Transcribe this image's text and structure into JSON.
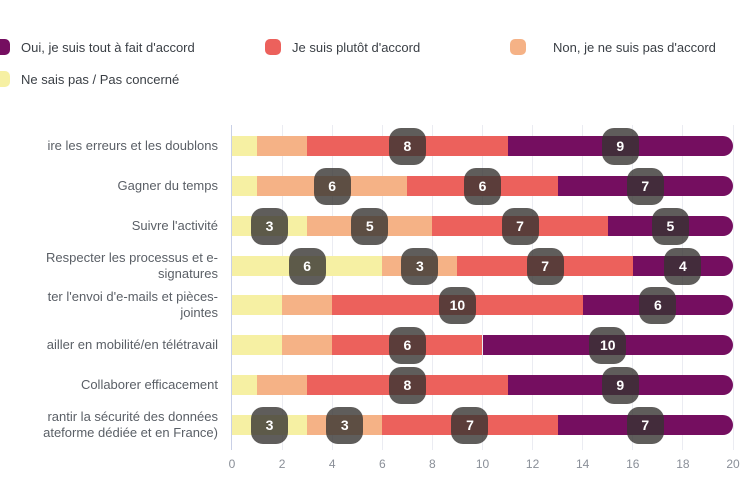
{
  "chart_data": {
    "type": "bar",
    "orientation": "horizontal",
    "stacked": true,
    "title": "",
    "legend_position": "top",
    "grid": "vertical",
    "xlim": [
      0,
      20
    ],
    "xticks": [
      0,
      2,
      4,
      6,
      8,
      10,
      12,
      14,
      16,
      18,
      20
    ],
    "categories": [
      [
        "ire les erreurs et les doublons"
      ],
      [
        "Gagner du temps"
      ],
      [
        "Suivre l'activité"
      ],
      [
        "Respecter les processus et e-",
        "signatures"
      ],
      [
        "ter l'envoi d'e-mails et pièces-",
        "jointes"
      ],
      [
        "ailler en mobilité/en télétravail"
      ],
      [
        "Collaborer efficacement"
      ],
      [
        "rantir la sécurité des données",
        "ateforme dédiée et en France)"
      ]
    ],
    "series": [
      {
        "name": "Oui, je suis tout à fait d'accord",
        "color": "#750e60",
        "values": [
          9,
          7,
          5,
          4,
          6,
          10,
          9,
          7
        ]
      },
      {
        "name": "Je suis plutôt d'accord",
        "color": "#ec615c",
        "values": [
          8,
          6,
          7,
          7,
          10,
          6,
          8,
          7
        ]
      },
      {
        "name": "Non, je ne suis pas d'accord",
        "color": "#f5b286",
        "values": [
          2,
          6,
          5,
          3,
          2,
          2,
          2,
          3
        ]
      },
      {
        "name": "Ne sais pas / Pas concerné",
        "color": "#f6f0a3",
        "values": [
          1,
          1,
          3,
          6,
          2,
          2,
          1,
          3
        ]
      }
    ],
    "stack_order_left_to_right": [
      "Ne sais pas / Pas concerné",
      "Non, je ne suis pas d'accord",
      "Je suis plutôt d'accord",
      "Oui, je suis tout à fait d'accord"
    ],
    "data_labels": {
      "min_value_shown": 3,
      "chip_color": "rgba(55,52,50,0.8)",
      "text_color": "#ffffff"
    }
  }
}
